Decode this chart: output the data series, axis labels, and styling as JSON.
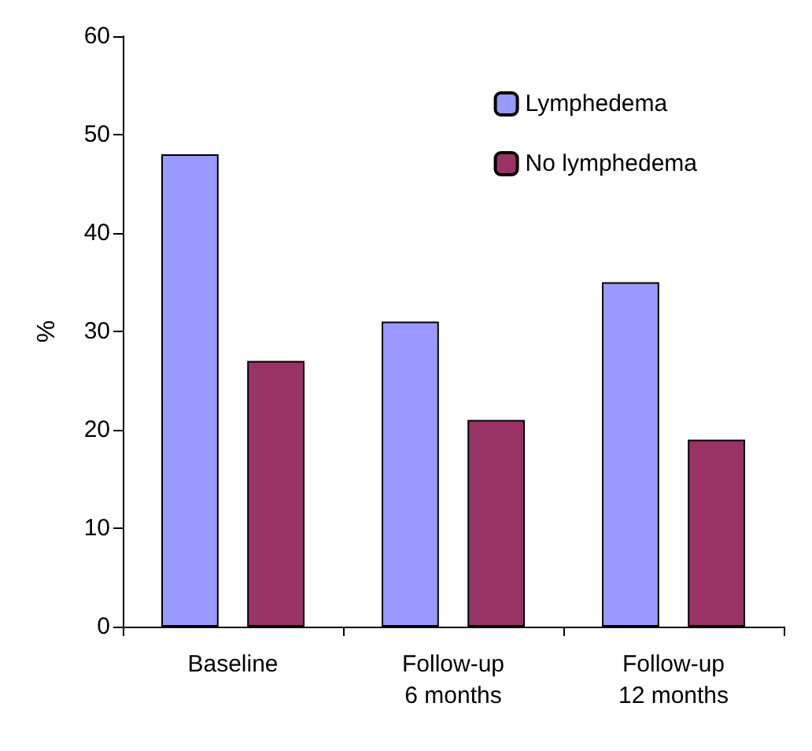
{
  "chart_data": {
    "type": "bar",
    "ylabel": "%",
    "categories": [
      "Baseline",
      "Follow-up\n6 months",
      "Follow-up\n12 months"
    ],
    "series": [
      {
        "name": "Lymphedema",
        "color": "#9999ff",
        "values": [
          48,
          31,
          35
        ]
      },
      {
        "name": "No lymphedema",
        "color": "#993366",
        "values": [
          27,
          21,
          19
        ]
      }
    ],
    "ylim": [
      0,
      60
    ],
    "yticks": [
      0,
      10,
      20,
      30,
      40,
      50,
      60
    ],
    "grid": false,
    "legend": "top right"
  }
}
